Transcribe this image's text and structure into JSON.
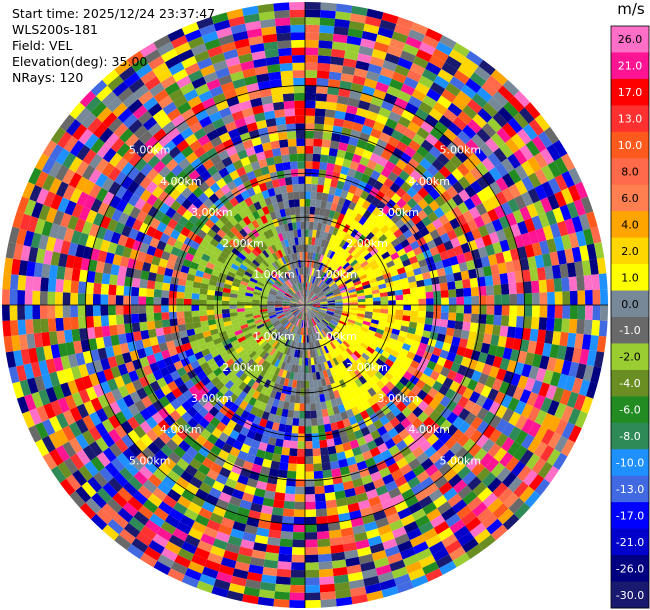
{
  "header": {
    "start_time": "Start time: 2025/12/24 23:37:47",
    "instrument": "WLS200s-181",
    "field": "Field: VEL",
    "elevation": "Elevation(deg): 35.00",
    "nrays": "NRays: 120"
  },
  "chart_data": {
    "type": "heatmap",
    "projection": "polar",
    "field": "VEL",
    "n_rays": 120,
    "range_rings_km": [
      1.0,
      2.0,
      3.0,
      4.0,
      5.0
    ],
    "range_ring_labels": [
      "1.00km",
      "2.00km",
      "3.00km",
      "4.00km",
      "5.00km"
    ],
    "max_range_km": 6.9,
    "colorbar": {
      "unit": "m/s",
      "ticks": [
        "26.0",
        "21.0",
        "17.0",
        "13.0",
        "10.0",
        "8.0",
        "6.0",
        "4.0",
        "2.0",
        "1.0",
        "0.0",
        "-1.0",
        "-2.0",
        "-4.0",
        "-6.0",
        "-8.0",
        "-10.0",
        "-13.0",
        "-17.0",
        "-21.0",
        "-26.0",
        "-30.0"
      ],
      "colors": [
        "#ff6ec7",
        "#ff1493",
        "#ff0000",
        "#ff3030",
        "#ff5a1e",
        "#ff6a4a",
        "#ff7f50",
        "#ffa500",
        "#ffd700",
        "#ffff00",
        "#778899",
        "#696969",
        "#9acd32",
        "#6b8e23",
        "#228b22",
        "#2e8b57",
        "#1e90ff",
        "#4169e1",
        "#0000ff",
        "#0000cd",
        "#000080",
        "#191970"
      ]
    },
    "bins_per_ray": 40
  }
}
